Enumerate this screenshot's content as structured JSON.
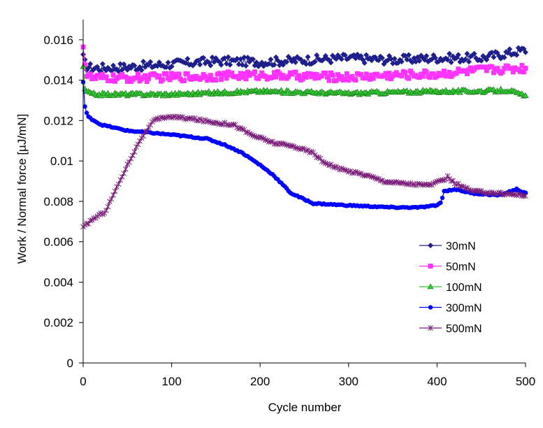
{
  "chart_data": {
    "type": "line",
    "title": "",
    "xlabel": "Cycle number",
    "ylabel": "Work / Normal force [µJ/mN]",
    "xlim": [
      0,
      500
    ],
    "ylim": [
      0,
      0.017
    ],
    "x_ticks": [
      "0",
      "100",
      "200",
      "300",
      "400",
      "500"
    ],
    "y_ticks": [
      "0",
      "0.002",
      "0.004",
      "0.006",
      "0.008",
      "0.01",
      "0.012",
      "0.014",
      "0.016"
    ],
    "grid": false,
    "legend_position": "bottom-right inside",
    "series": [
      {
        "name": "30mN",
        "color": "#1f1f8c",
        "marker": "diamond",
        "noise": 0.00022,
        "points": [
          [
            0,
            0.0151
          ],
          [
            3,
            0.0147
          ],
          [
            10,
            0.0146
          ],
          [
            50,
            0.01465
          ],
          [
            100,
            0.0148
          ],
          [
            150,
            0.01495
          ],
          [
            200,
            0.0149
          ],
          [
            250,
            0.015
          ],
          [
            300,
            0.0151
          ],
          [
            350,
            0.015
          ],
          [
            400,
            0.0151
          ],
          [
            450,
            0.0151
          ],
          [
            500,
            0.0155
          ]
        ]
      },
      {
        "name": "50mN",
        "color": "#ff33ff",
        "marker": "square",
        "noise": 0.0002,
        "points": [
          [
            0,
            0.0158
          ],
          [
            3,
            0.0143
          ],
          [
            10,
            0.0141
          ],
          [
            50,
            0.0141
          ],
          [
            100,
            0.01415
          ],
          [
            150,
            0.0142
          ],
          [
            200,
            0.01425
          ],
          [
            250,
            0.0142
          ],
          [
            300,
            0.01415
          ],
          [
            350,
            0.01425
          ],
          [
            400,
            0.0143
          ],
          [
            450,
            0.0145
          ],
          [
            500,
            0.0146
          ]
        ]
      },
      {
        "name": "100mN",
        "color": "#33cc33",
        "marker": "triangle",
        "noise": 8e-05,
        "points": [
          [
            0,
            0.0147
          ],
          [
            2,
            0.0135
          ],
          [
            10,
            0.0133
          ],
          [
            100,
            0.0133
          ],
          [
            200,
            0.01345
          ],
          [
            250,
            0.0134
          ],
          [
            300,
            0.01335
          ],
          [
            400,
            0.01345
          ],
          [
            450,
            0.01345
          ],
          [
            480,
            0.0135
          ],
          [
            500,
            0.0132
          ]
        ]
      },
      {
        "name": "300mN",
        "color": "#0000ff",
        "marker": "circle",
        "noise": 3e-05,
        "points": [
          [
            0,
            0.0139
          ],
          [
            2,
            0.0127
          ],
          [
            5,
            0.0122
          ],
          [
            20,
            0.0118
          ],
          [
            50,
            0.0115
          ],
          [
            100,
            0.0113
          ],
          [
            140,
            0.0111
          ],
          [
            160,
            0.0108
          ],
          [
            180,
            0.0104
          ],
          [
            200,
            0.0098
          ],
          [
            215,
            0.0093
          ],
          [
            235,
            0.0084
          ],
          [
            260,
            0.0079
          ],
          [
            300,
            0.0078
          ],
          [
            350,
            0.0077
          ],
          [
            380,
            0.0077
          ],
          [
            400,
            0.0078
          ],
          [
            405,
            0.008
          ],
          [
            408,
            0.0085
          ],
          [
            420,
            0.0086
          ],
          [
            440,
            0.0084
          ],
          [
            470,
            0.0083
          ],
          [
            490,
            0.0086
          ],
          [
            500,
            0.0084
          ]
        ]
      },
      {
        "name": "500mN",
        "color": "#7b1f7b",
        "marker": "asterisk",
        "noise": 6e-05,
        "points": [
          [
            0,
            0.0067
          ],
          [
            10,
            0.0071
          ],
          [
            25,
            0.0075
          ],
          [
            35,
            0.0084
          ],
          [
            50,
            0.0098
          ],
          [
            65,
            0.0111
          ],
          [
            80,
            0.012
          ],
          [
            95,
            0.0122
          ],
          [
            120,
            0.0121
          ],
          [
            150,
            0.0119
          ],
          [
            170,
            0.0118
          ],
          [
            190,
            0.0113
          ],
          [
            215,
            0.0109
          ],
          [
            240,
            0.0107
          ],
          [
            260,
            0.0104
          ],
          [
            270,
            0.01
          ],
          [
            290,
            0.0096
          ],
          [
            320,
            0.0093
          ],
          [
            340,
            0.009
          ],
          [
            360,
            0.0089
          ],
          [
            390,
            0.0088
          ],
          [
            405,
            0.009
          ],
          [
            412,
            0.0092
          ],
          [
            420,
            0.0089
          ],
          [
            440,
            0.0085
          ],
          [
            470,
            0.0084
          ],
          [
            500,
            0.0083
          ]
        ]
      }
    ]
  }
}
